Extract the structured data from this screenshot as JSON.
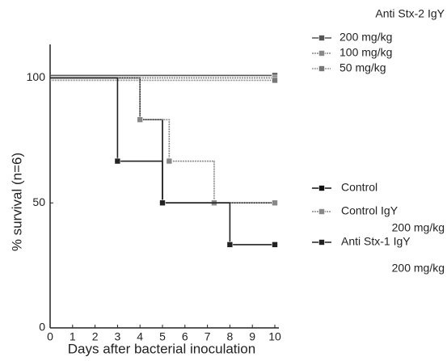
{
  "chart_data": {
    "type": "step",
    "xlabel": "Days after bacterial inoculation",
    "ylabel": "% survival (n=6)",
    "legend_group_title": "Anti Stx-2 IgY",
    "xlim": [
      0,
      10
    ],
    "xticks": [
      0,
      1,
      2,
      3,
      4,
      5,
      6,
      7,
      8,
      9,
      10
    ],
    "ylim": [
      0,
      115
    ],
    "yticks": [
      0,
      50,
      100
    ],
    "series": [
      {
        "name": "200 mg/kg",
        "group": 1,
        "color": "#555555",
        "dash": "",
        "x": [
          0,
          10
        ],
        "values": [
          100,
          100
        ]
      },
      {
        "name": "100 mg/kg",
        "group": 1,
        "color": "#888888",
        "dash": "2,1",
        "x": [
          0,
          10
        ],
        "values": [
          100,
          100
        ]
      },
      {
        "name": "50 mg/kg",
        "group": 1,
        "color": "#777777",
        "dash": "1,1",
        "x": [
          0,
          10
        ],
        "values": [
          100,
          100
        ]
      },
      {
        "name": "Control",
        "group": 2,
        "color": "#111111",
        "dash": "",
        "x": [
          0,
          4,
          5,
          10
        ],
        "values": [
          100,
          83.3,
          50,
          50
        ]
      },
      {
        "name": "Control IgY",
        "dose": "200 mg/kg",
        "group": 2,
        "color": "#888888",
        "dash": "2,1",
        "x": [
          0,
          4,
          5.3,
          7.3,
          10
        ],
        "values": [
          100,
          83.3,
          66.7,
          50,
          50
        ]
      },
      {
        "name": "Anti Stx-1 IgY",
        "dose": "200 mg/kg",
        "group": 2,
        "color": "#222222",
        "dash": "",
        "x": [
          0,
          3,
          5,
          8,
          10
        ],
        "values": [
          100,
          66.7,
          50,
          33.3,
          33.3
        ]
      }
    ]
  }
}
